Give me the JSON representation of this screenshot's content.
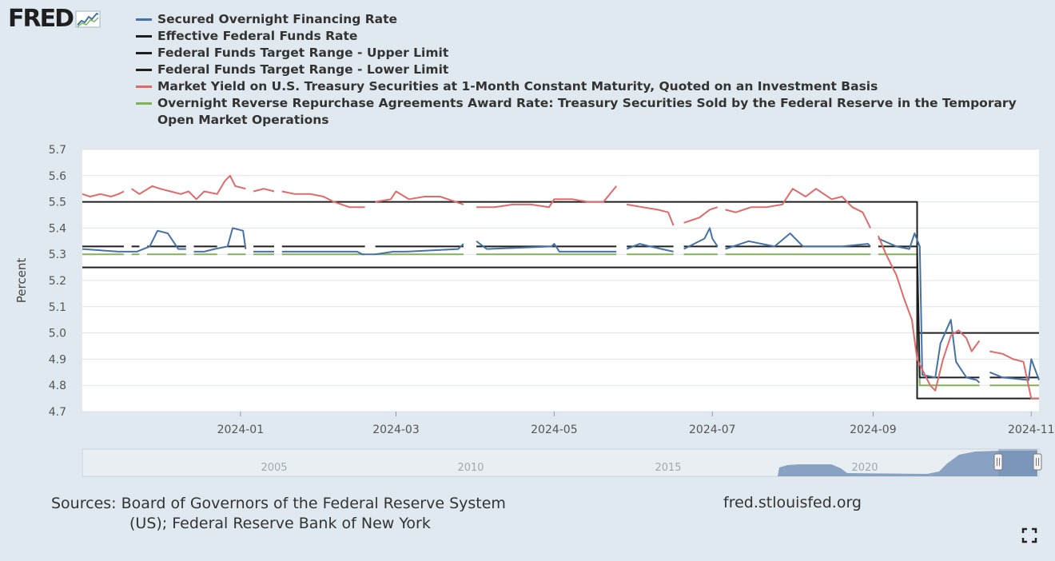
{
  "logo": {
    "text": "FRED",
    "icon": "chart-line-icon"
  },
  "chart_data": {
    "type": "line",
    "title": "",
    "xlabel": "",
    "ylabel": "Percent",
    "ylim": [
      4.7,
      5.7
    ],
    "yticks": [
      "4.7",
      "4.8",
      "4.9",
      "5.0",
      "5.1",
      "5.2",
      "5.3",
      "5.4",
      "5.5",
      "5.6",
      "5.7"
    ],
    "xlim": [
      "2023-11-01",
      "2024-11-04"
    ],
    "xticks": [
      {
        "label": "2024-01",
        "date": "2024-01-01"
      },
      {
        "label": "2024-03",
        "date": "2024-03-01"
      },
      {
        "label": "2024-05",
        "date": "2024-05-01"
      },
      {
        "label": "2024-07",
        "date": "2024-07-01"
      },
      {
        "label": "2024-09",
        "date": "2024-09-01"
      },
      {
        "label": "2024-11",
        "date": "2024-11-01"
      }
    ],
    "grid": true,
    "legend_position": "top",
    "gaps": [
      [
        "2023-11-17",
        "2023-11-20"
      ],
      [
        "2023-11-23",
        "2023-11-26"
      ],
      [
        "2023-12-11",
        "2023-12-14"
      ],
      [
        "2023-12-23",
        "2023-12-27"
      ],
      [
        "2024-01-03",
        "2024-01-06"
      ],
      [
        "2024-01-14",
        "2024-01-17"
      ],
      [
        "2024-02-18",
        "2024-02-22"
      ],
      [
        "2024-03-27",
        "2024-04-01"
      ],
      [
        "2024-05-25",
        "2024-05-29"
      ],
      [
        "2024-06-16",
        "2024-06-20"
      ],
      [
        "2024-07-03",
        "2024-07-06"
      ],
      [
        "2024-08-31",
        "2024-09-03"
      ],
      [
        "2024-10-12",
        "2024-10-16"
      ]
    ],
    "series": [
      {
        "name": "Secured Overnight Financing Rate",
        "color": "#4572a7",
        "points": [
          [
            "2023-11-01",
            5.32
          ],
          [
            "2023-11-15",
            5.31
          ],
          [
            "2023-11-20",
            5.31
          ],
          [
            "2023-11-22",
            5.31
          ],
          [
            "2023-11-27",
            5.33
          ],
          [
            "2023-11-30",
            5.39
          ],
          [
            "2023-12-04",
            5.38
          ],
          [
            "2023-12-08",
            5.32
          ],
          [
            "2023-12-11",
            5.32
          ],
          [
            "2023-12-14",
            5.31
          ],
          [
            "2023-12-18",
            5.31
          ],
          [
            "2023-12-22",
            5.32
          ],
          [
            "2023-12-27",
            5.33
          ],
          [
            "2023-12-29",
            5.4
          ],
          [
            "2024-01-02",
            5.39
          ],
          [
            "2024-01-03",
            5.32
          ],
          [
            "2024-01-06",
            5.31
          ],
          [
            "2024-01-14",
            5.31
          ],
          [
            "2024-01-17",
            5.31
          ],
          [
            "2024-02-15",
            5.31
          ],
          [
            "2024-02-17",
            5.3
          ],
          [
            "2024-02-22",
            5.3
          ],
          [
            "2024-02-29",
            5.31
          ],
          [
            "2024-03-05",
            5.31
          ],
          [
            "2024-03-25",
            5.32
          ],
          [
            "2024-03-27",
            5.34
          ],
          [
            "2024-04-01",
            5.35
          ],
          [
            "2024-04-05",
            5.32
          ],
          [
            "2024-04-30",
            5.33
          ],
          [
            "2024-05-01",
            5.34
          ],
          [
            "2024-05-03",
            5.31
          ],
          [
            "2024-05-25",
            5.31
          ],
          [
            "2024-05-29",
            5.32
          ],
          [
            "2024-06-03",
            5.34
          ],
          [
            "2024-06-07",
            5.33
          ],
          [
            "2024-06-16",
            5.31
          ],
          [
            "2024-06-20",
            5.32
          ],
          [
            "2024-06-28",
            5.36
          ],
          [
            "2024-06-30",
            5.4
          ],
          [
            "2024-07-01",
            5.36
          ],
          [
            "2024-07-03",
            5.33
          ],
          [
            "2024-07-06",
            5.32
          ],
          [
            "2024-07-15",
            5.35
          ],
          [
            "2024-07-25",
            5.33
          ],
          [
            "2024-07-31",
            5.38
          ],
          [
            "2024-08-05",
            5.33
          ],
          [
            "2024-08-20",
            5.33
          ],
          [
            "2024-08-30",
            5.34
          ],
          [
            "2024-08-31",
            5.33
          ],
          [
            "2024-09-03",
            5.36
          ],
          [
            "2024-09-10",
            5.33
          ],
          [
            "2024-09-15",
            5.32
          ],
          [
            "2024-09-17",
            5.38
          ],
          [
            "2024-09-19",
            5.33
          ],
          [
            "2024-09-20",
            4.84
          ],
          [
            "2024-09-25",
            4.83
          ],
          [
            "2024-09-27",
            4.96
          ],
          [
            "2024-10-01",
            5.05
          ],
          [
            "2024-10-03",
            4.89
          ],
          [
            "2024-10-07",
            4.83
          ],
          [
            "2024-10-11",
            4.82
          ],
          [
            "2024-10-12",
            4.81
          ],
          [
            "2024-10-16",
            4.85
          ],
          [
            "2024-10-21",
            4.83
          ],
          [
            "2024-10-31",
            4.82
          ],
          [
            "2024-11-01",
            4.9
          ],
          [
            "2024-11-04",
            4.82
          ]
        ]
      },
      {
        "name": "Effective Federal Funds Rate",
        "color": "#1f1f1f",
        "points": [
          [
            "2023-11-01",
            5.33
          ],
          [
            "2023-11-17",
            5.33
          ],
          [
            "2023-11-20",
            5.33
          ],
          [
            "2023-11-23",
            5.33
          ],
          [
            "2023-11-26",
            5.33
          ],
          [
            "2023-12-11",
            5.33
          ],
          [
            "2023-12-14",
            5.33
          ],
          [
            "2023-12-23",
            5.33
          ],
          [
            "2023-12-27",
            5.33
          ],
          [
            "2024-01-03",
            5.33
          ],
          [
            "2024-01-06",
            5.33
          ],
          [
            "2024-01-14",
            5.33
          ],
          [
            "2024-01-17",
            5.33
          ],
          [
            "2024-02-18",
            5.33
          ],
          [
            "2024-02-22",
            5.33
          ],
          [
            "2024-03-27",
            5.33
          ],
          [
            "2024-04-01",
            5.33
          ],
          [
            "2024-05-25",
            5.33
          ],
          [
            "2024-05-29",
            5.33
          ],
          [
            "2024-06-16",
            5.33
          ],
          [
            "2024-06-20",
            5.33
          ],
          [
            "2024-07-03",
            5.33
          ],
          [
            "2024-07-06",
            5.33
          ],
          [
            "2024-08-31",
            5.33
          ],
          [
            "2024-09-03",
            5.33
          ],
          [
            "2024-09-18",
            5.33
          ],
          [
            "2024-09-19",
            4.83
          ],
          [
            "2024-10-12",
            4.83
          ],
          [
            "2024-10-16",
            4.83
          ],
          [
            "2024-11-04",
            4.83
          ]
        ]
      },
      {
        "name": "Federal Funds Target Range - Upper Limit",
        "color": "#1f1f1f",
        "points": [
          [
            "2023-11-01",
            5.5
          ],
          [
            "2024-09-18",
            5.5
          ],
          [
            "2024-09-18",
            5.0
          ],
          [
            "2024-11-04",
            5.0
          ]
        ]
      },
      {
        "name": "Federal Funds Target Range - Lower Limit",
        "color": "#1f1f1f",
        "points": [
          [
            "2023-11-01",
            5.25
          ],
          [
            "2024-09-18",
            5.25
          ],
          [
            "2024-09-18",
            4.75
          ],
          [
            "2024-11-04",
            4.75
          ]
        ]
      },
      {
        "name": "Market Yield on U.S. Treasury Securities at 1-Month Constant Maturity, Quoted on an Investment Basis",
        "color": "#e06a6a",
        "points": [
          [
            "2023-11-01",
            5.53
          ],
          [
            "2023-11-04",
            5.52
          ],
          [
            "2023-11-08",
            5.53
          ],
          [
            "2023-11-12",
            5.52
          ],
          [
            "2023-11-15",
            5.53
          ],
          [
            "2023-11-17",
            5.54
          ],
          [
            "2023-11-20",
            5.55
          ],
          [
            "2023-11-23",
            5.53
          ],
          [
            "2023-11-28",
            5.56
          ],
          [
            "2023-12-01",
            5.55
          ],
          [
            "2023-12-05",
            5.54
          ],
          [
            "2023-12-09",
            5.53
          ],
          [
            "2023-12-12",
            5.54
          ],
          [
            "2023-12-15",
            5.51
          ],
          [
            "2023-12-18",
            5.54
          ],
          [
            "2023-12-23",
            5.53
          ],
          [
            "2023-12-26",
            5.58
          ],
          [
            "2023-12-28",
            5.6
          ],
          [
            "2023-12-30",
            5.56
          ],
          [
            "2024-01-03",
            5.55
          ],
          [
            "2024-01-06",
            5.54
          ],
          [
            "2024-01-10",
            5.55
          ],
          [
            "2024-01-14",
            5.54
          ],
          [
            "2024-01-17",
            5.54
          ],
          [
            "2024-01-22",
            5.53
          ],
          [
            "2024-01-28",
            5.53
          ],
          [
            "2024-02-02",
            5.52
          ],
          [
            "2024-02-06",
            5.5
          ],
          [
            "2024-02-12",
            5.48
          ],
          [
            "2024-02-18",
            5.48
          ],
          [
            "2024-02-22",
            5.5
          ],
          [
            "2024-02-28",
            5.51
          ],
          [
            "2024-03-01",
            5.54
          ],
          [
            "2024-03-06",
            5.51
          ],
          [
            "2024-03-12",
            5.52
          ],
          [
            "2024-03-18",
            5.52
          ],
          [
            "2024-03-24",
            5.5
          ],
          [
            "2024-03-27",
            5.49
          ],
          [
            "2024-04-01",
            5.48
          ],
          [
            "2024-04-08",
            5.48
          ],
          [
            "2024-04-15",
            5.49
          ],
          [
            "2024-04-22",
            5.49
          ],
          [
            "2024-04-29",
            5.48
          ],
          [
            "2024-05-01",
            5.51
          ],
          [
            "2024-05-08",
            5.51
          ],
          [
            "2024-05-14",
            5.5
          ],
          [
            "2024-05-20",
            5.5
          ],
          [
            "2024-05-25",
            5.56
          ],
          [
            "2024-05-29",
            5.49
          ],
          [
            "2024-06-04",
            5.48
          ],
          [
            "2024-06-10",
            5.47
          ],
          [
            "2024-06-14",
            5.46
          ],
          [
            "2024-06-16",
            5.41
          ],
          [
            "2024-06-20",
            5.42
          ],
          [
            "2024-06-26",
            5.44
          ],
          [
            "2024-06-30",
            5.47
          ],
          [
            "2024-07-03",
            5.48
          ],
          [
            "2024-07-06",
            5.47
          ],
          [
            "2024-07-10",
            5.46
          ],
          [
            "2024-07-16",
            5.48
          ],
          [
            "2024-07-22",
            5.48
          ],
          [
            "2024-07-28",
            5.49
          ],
          [
            "2024-08-01",
            5.55
          ],
          [
            "2024-08-06",
            5.52
          ],
          [
            "2024-08-10",
            5.55
          ],
          [
            "2024-08-16",
            5.51
          ],
          [
            "2024-08-20",
            5.52
          ],
          [
            "2024-08-24",
            5.48
          ],
          [
            "2024-08-28",
            5.46
          ],
          [
            "2024-08-31",
            5.4
          ],
          [
            "2024-09-03",
            5.37
          ],
          [
            "2024-09-06",
            5.3
          ],
          [
            "2024-09-10",
            5.22
          ],
          [
            "2024-09-13",
            5.13
          ],
          [
            "2024-09-16",
            5.05
          ],
          [
            "2024-09-18",
            4.9
          ],
          [
            "2024-09-20",
            4.86
          ],
          [
            "2024-09-23",
            4.8
          ],
          [
            "2024-09-25",
            4.78
          ],
          [
            "2024-09-28",
            4.9
          ],
          [
            "2024-10-01",
            4.99
          ],
          [
            "2024-10-04",
            5.01
          ],
          [
            "2024-10-07",
            4.98
          ],
          [
            "2024-10-09",
            4.93
          ],
          [
            "2024-10-12",
            4.97
          ],
          [
            "2024-10-16",
            4.93
          ],
          [
            "2024-10-21",
            4.92
          ],
          [
            "2024-10-25",
            4.9
          ],
          [
            "2024-10-29",
            4.89
          ],
          [
            "2024-11-01",
            4.75
          ],
          [
            "2024-11-04",
            4.75
          ]
        ]
      },
      {
        "name": "Overnight Reverse Repurchase Agreements Award Rate: Treasury Securities Sold by the Federal Reserve in the Temporary Open Market Operations",
        "color": "#80b352",
        "points": [
          [
            "2023-11-01",
            5.3
          ],
          [
            "2023-11-17",
            5.3
          ],
          [
            "2023-11-20",
            5.3
          ],
          [
            "2023-11-23",
            5.3
          ],
          [
            "2023-11-26",
            5.3
          ],
          [
            "2023-12-11",
            5.3
          ],
          [
            "2023-12-14",
            5.3
          ],
          [
            "2023-12-23",
            5.3
          ],
          [
            "2023-12-27",
            5.3
          ],
          [
            "2024-01-03",
            5.3
          ],
          [
            "2024-01-06",
            5.3
          ],
          [
            "2024-01-14",
            5.3
          ],
          [
            "2024-01-17",
            5.3
          ],
          [
            "2024-02-18",
            5.3
          ],
          [
            "2024-02-22",
            5.3
          ],
          [
            "2024-03-27",
            5.3
          ],
          [
            "2024-04-01",
            5.3
          ],
          [
            "2024-05-25",
            5.3
          ],
          [
            "2024-05-29",
            5.3
          ],
          [
            "2024-06-16",
            5.3
          ],
          [
            "2024-06-20",
            5.3
          ],
          [
            "2024-07-03",
            5.3
          ],
          [
            "2024-07-06",
            5.3
          ],
          [
            "2024-08-31",
            5.3
          ],
          [
            "2024-09-03",
            5.3
          ],
          [
            "2024-09-18",
            5.3
          ],
          [
            "2024-09-19",
            4.8
          ],
          [
            "2024-10-12",
            4.8
          ],
          [
            "2024-10-16",
            4.8
          ],
          [
            "2024-11-04",
            4.8
          ]
        ]
      }
    ],
    "navigator": {
      "labels": [
        "2005",
        "2010",
        "2015",
        "2020"
      ],
      "selected_range": [
        "2023-11-01",
        "2024-11-04"
      ]
    }
  },
  "footer": {
    "sources_line1": "Sources: Board of Governors of the Federal Reserve System",
    "sources_line2": "(US); Federal Reserve Bank of New York",
    "url": "fred.stlouisfed.org"
  },
  "controls": {
    "fullscreen_icon": "fullscreen-icon"
  }
}
